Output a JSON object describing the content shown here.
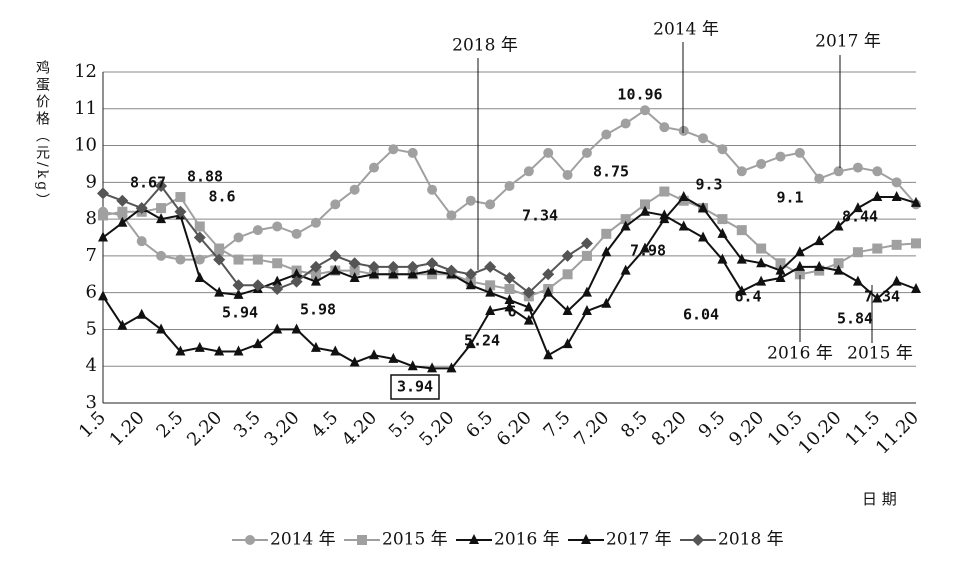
{
  "chart_data": {
    "type": "line",
    "y_label": "鸡蛋价格（元/kg）",
    "x_label": "日 期",
    "categories": [
      "1.5",
      null,
      "1.20",
      null,
      "2.5",
      null,
      "2.20",
      null,
      "3.5",
      null,
      "3.20",
      null,
      "4.5",
      null,
      "4.20",
      null,
      "5.5",
      null,
      "5.20",
      null,
      "6.5",
      null,
      "6.20",
      null,
      "7.5",
      null,
      "7.20",
      null,
      "8.5",
      null,
      "8.20",
      null,
      "9.5",
      null,
      "9.20",
      null,
      "10.5",
      null,
      "10.20",
      null,
      "11.5",
      null,
      "11.20"
    ],
    "series": [
      {
        "name": "2014 年",
        "color": "#a0a0a0",
        "marker": "circle",
        "values": [
          8.2,
          8.1,
          7.4,
          7.0,
          6.9,
          6.9,
          7.1,
          7.5,
          7.7,
          7.8,
          7.6,
          7.9,
          8.4,
          8.8,
          9.4,
          9.9,
          9.8,
          8.8,
          8.1,
          8.5,
          8.4,
          8.9,
          9.3,
          9.8,
          9.2,
          9.8,
          10.3,
          10.6,
          10.96,
          10.5,
          10.4,
          10.2,
          9.9,
          9.3,
          9.5,
          9.7,
          9.8,
          9.1,
          9.3,
          9.4,
          9.3,
          9.0,
          8.4
        ]
      },
      {
        "name": "2015 年",
        "color": "#a0a0a0",
        "marker": "square",
        "values": [
          8.1,
          8.2,
          8.2,
          8.3,
          8.6,
          7.8,
          7.2,
          6.9,
          6.9,
          6.8,
          6.6,
          6.5,
          6.6,
          6.6,
          6.5,
          6.5,
          6.5,
          6.5,
          6.5,
          6.3,
          6.2,
          6.1,
          5.9,
          6.1,
          6.5,
          7.0,
          7.6,
          8.0,
          8.4,
          8.75,
          8.5,
          8.3,
          8.0,
          7.7,
          7.2,
          6.8,
          6.5,
          6.6,
          6.8,
          7.1,
          7.2,
          7.3,
          7.34
        ]
      },
      {
        "name": "2016 年",
        "color": "#111111",
        "marker": "triangle",
        "values": [
          5.9,
          5.1,
          5.4,
          5.0,
          4.4,
          4.5,
          4.4,
          4.4,
          4.6,
          5.0,
          5.0,
          4.5,
          4.4,
          4.1,
          4.3,
          4.2,
          4.0,
          3.94,
          3.94,
          4.6,
          5.5,
          5.6,
          5.24,
          6.0,
          5.5,
          6.0,
          7.1,
          7.8,
          8.2,
          8.1,
          7.8,
          7.5,
          6.9,
          6.04,
          6.3,
          6.4,
          6.7,
          6.7,
          6.6,
          6.3,
          5.84,
          6.3,
          6.1
        ]
      },
      {
        "name": "2017 年",
        "color": "#111111",
        "marker": "triangle",
        "values": [
          7.5,
          7.9,
          8.3,
          8.0,
          8.1,
          6.4,
          6.0,
          5.94,
          6.1,
          6.3,
          6.5,
          6.3,
          6.6,
          6.4,
          6.5,
          6.5,
          6.5,
          6.6,
          6.5,
          6.2,
          6.0,
          5.8,
          5.6,
          4.3,
          4.6,
          5.5,
          5.7,
          6.6,
          7.2,
          8.0,
          8.6,
          8.3,
          7.6,
          6.9,
          6.8,
          6.6,
          7.1,
          7.4,
          7.8,
          8.3,
          8.6,
          8.6,
          8.44
        ]
      },
      {
        "name": "2018 年",
        "color": "#555555",
        "marker": "diamond",
        "values": [
          8.7,
          8.5,
          8.3,
          8.9,
          8.2,
          7.5,
          6.9,
          6.2,
          6.2,
          6.1,
          6.3,
          6.7,
          7.0,
          6.8,
          6.7,
          6.7,
          6.7,
          6.8,
          6.6,
          6.5,
          6.7,
          6.4,
          6.0,
          6.5,
          7.0,
          7.34,
          null,
          null,
          null,
          null,
          null,
          null,
          null,
          null,
          null,
          null,
          null,
          null,
          null,
          null,
          null,
          null,
          null
        ]
      }
    ],
    "annotations": [
      "8.67",
      "8.88",
      "8.6",
      "5.94",
      "5.98",
      "10.96",
      "8.75",
      "7.34",
      "6",
      "5.24",
      "3.94",
      "7.98",
      "6.04",
      "6.4",
      "9.3",
      "9.1",
      "8.44",
      "7.34",
      "5.84",
      "2018 年",
      "2014 年",
      "2017 年",
      "2016 年",
      "2015 年"
    ],
    "ylim": [
      3,
      12
    ],
    "yticks": [
      3,
      4,
      5,
      6,
      7,
      8,
      9,
      10,
      11,
      12
    ],
    "grid": true,
    "legend": "bottom"
  }
}
